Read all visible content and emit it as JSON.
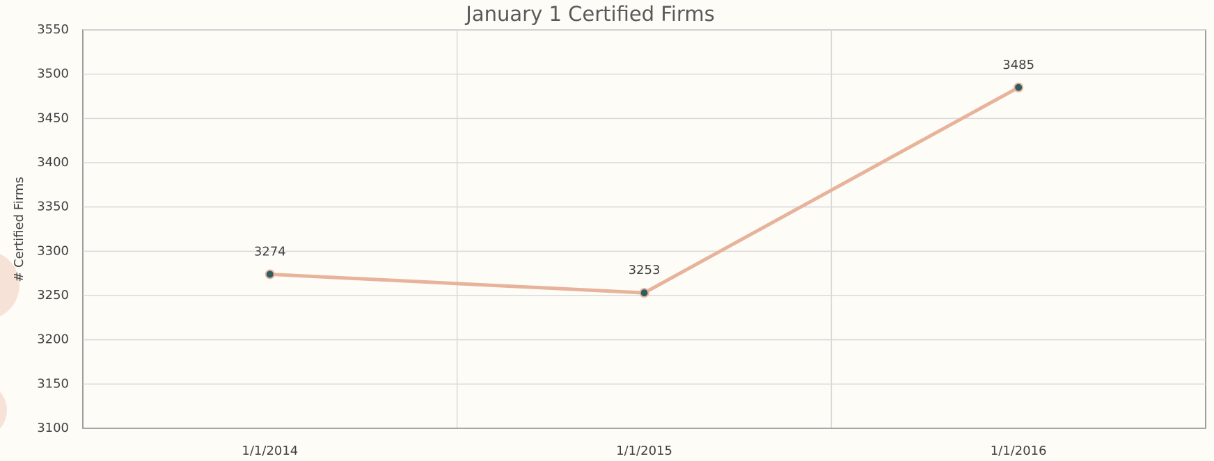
{
  "chart_data": {
    "type": "line",
    "title": "January 1 Certified Firms",
    "y_label": "# Certified Firms",
    "categories": [
      "1/1/2014",
      "1/1/2015",
      "1/1/2016"
    ],
    "values": [
      3274,
      3253,
      3485
    ],
    "color": "#e8b39b",
    "marker_color": "#2e5e62",
    "ylim": [
      3100,
      3550
    ],
    "yticks": [
      3100,
      3150,
      3200,
      3250,
      3300,
      3350,
      3400,
      3450,
      3500,
      3550
    ],
    "grid": true
  }
}
